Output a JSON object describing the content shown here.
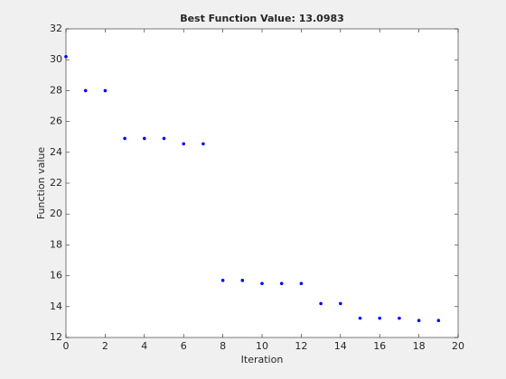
{
  "chart_data": {
    "type": "scatter",
    "title": "Best Function Value: 13.0983",
    "xlabel": "Iteration",
    "ylabel": "Function value",
    "x": [
      0,
      1,
      2,
      3,
      4,
      5,
      6,
      7,
      8,
      9,
      10,
      11,
      12,
      13,
      14,
      15,
      16,
      17,
      18,
      19
    ],
    "values": [
      30.2,
      28.0,
      28.0,
      24.9,
      24.9,
      24.9,
      24.55,
      24.55,
      15.7,
      15.7,
      15.5,
      15.5,
      15.5,
      14.2,
      14.2,
      13.25,
      13.25,
      13.25,
      13.1,
      13.1
    ],
    "color": "#0000ff",
    "xlim": [
      0,
      20
    ],
    "xticks": [
      0,
      2,
      4,
      6,
      8,
      10,
      12,
      14,
      16,
      18,
      20
    ],
    "ylim": [
      12,
      32
    ],
    "yticks": [
      12,
      14,
      16,
      18,
      20,
      22,
      24,
      26,
      28,
      30,
      32
    ]
  }
}
